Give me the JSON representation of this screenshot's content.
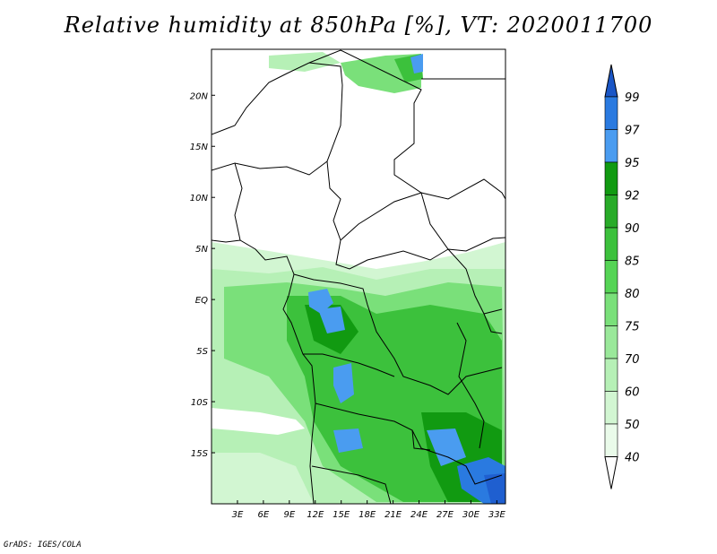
{
  "title": "Relative humidity at 850hPa [%], VT: 2020011700",
  "footer": "GrADS: IGES/COLA",
  "map": {
    "lon_range": [
      0,
      34
    ],
    "lat_range": [
      -20,
      24.5
    ],
    "lon_ticks": [
      {
        "value": 3,
        "label": "3E"
      },
      {
        "value": 6,
        "label": "6E"
      },
      {
        "value": 9,
        "label": "9E"
      },
      {
        "value": 12,
        "label": "12E"
      },
      {
        "value": 15,
        "label": "15E"
      },
      {
        "value": 18,
        "label": "18E"
      },
      {
        "value": 21,
        "label": "21E"
      },
      {
        "value": 24,
        "label": "24E"
      },
      {
        "value": 27,
        "label": "27E"
      },
      {
        "value": 30,
        "label": "30E"
      },
      {
        "value": 33,
        "label": "33E"
      }
    ],
    "lat_ticks": [
      {
        "value": 20,
        "label": "20N"
      },
      {
        "value": 15,
        "label": "15N"
      },
      {
        "value": 10,
        "label": "10N"
      },
      {
        "value": 5,
        "label": "5N"
      },
      {
        "value": 0,
        "label": "EQ"
      },
      {
        "value": -5,
        "label": "5S"
      },
      {
        "value": -10,
        "label": "10S"
      },
      {
        "value": -15,
        "label": "15S"
      }
    ]
  },
  "colorbar": {
    "levels": [
      {
        "label": "99",
        "color": "#1f5fd0"
      },
      {
        "label": "97",
        "color": "#2a7ae0"
      },
      {
        "label": "95",
        "color": "#4a9cf0"
      },
      {
        "label": "92",
        "color": "#119a11"
      },
      {
        "label": "90",
        "color": "#28ab28"
      },
      {
        "label": "85",
        "color": "#3cc13c"
      },
      {
        "label": "80",
        "color": "#55d455"
      },
      {
        "label": "75",
        "color": "#7ae07a"
      },
      {
        "label": "70",
        "color": "#9ae89a"
      },
      {
        "label": "60",
        "color": "#b6f0b6"
      },
      {
        "label": "50",
        "color": "#d2f6d2"
      },
      {
        "label": "40",
        "color": "#eafbea"
      }
    ],
    "top_color": "#1a56c6",
    "bottom_color": "#ffffff"
  }
}
